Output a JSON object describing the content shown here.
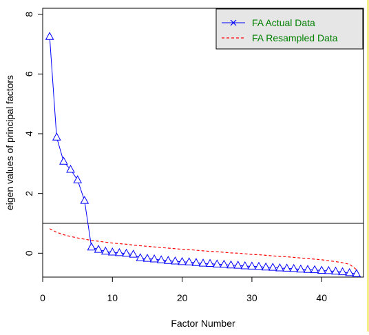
{
  "chart_data": {
    "type": "line",
    "xlabel": "Factor Number",
    "ylabel": "eigen values of principal factors",
    "xlim": [
      0,
      46
    ],
    "ylim": [
      -0.8,
      8.2
    ],
    "x_ticks": [
      0,
      10,
      20,
      30,
      40
    ],
    "y_ticks": [
      0,
      2,
      4,
      6,
      8
    ],
    "grid": false,
    "legend_position": "top-right",
    "reference_line": {
      "y": 1,
      "color": "#000000"
    },
    "series": [
      {
        "name": "FA  Actual Data",
        "style": "line-with-triangles",
        "color": "#0000ff",
        "x": [
          1,
          2,
          3,
          4,
          5,
          6,
          7,
          8,
          9,
          10,
          11,
          12,
          13,
          14,
          15,
          16,
          17,
          18,
          19,
          20,
          21,
          22,
          23,
          24,
          25,
          26,
          27,
          28,
          29,
          30,
          31,
          32,
          33,
          34,
          35,
          36,
          37,
          38,
          39,
          40,
          41,
          42,
          43,
          44,
          45
        ],
        "values": [
          7.25,
          3.88,
          3.07,
          2.8,
          2.45,
          1.76,
          0.2,
          0.12,
          0.06,
          0.03,
          0.01,
          -0.01,
          -0.04,
          -0.16,
          -0.18,
          -0.2,
          -0.23,
          -0.25,
          -0.27,
          -0.29,
          -0.3,
          -0.32,
          -0.34,
          -0.35,
          -0.37,
          -0.38,
          -0.4,
          -0.41,
          -0.43,
          -0.44,
          -0.45,
          -0.47,
          -0.48,
          -0.5,
          -0.51,
          -0.52,
          -0.54,
          -0.55,
          -0.56,
          -0.58,
          -0.59,
          -0.61,
          -0.63,
          -0.66,
          -0.69
        ]
      },
      {
        "name": "FA  Resampled Data",
        "style": "dashed",
        "color": "#ff0000",
        "x": [
          1,
          2,
          3,
          4,
          5,
          6,
          7,
          8,
          9,
          10,
          11,
          12,
          13,
          14,
          15,
          16,
          17,
          18,
          19,
          20,
          21,
          22,
          23,
          24,
          25,
          26,
          27,
          28,
          29,
          30,
          31,
          32,
          33,
          34,
          35,
          36,
          37,
          38,
          39,
          40,
          41,
          42,
          43,
          44,
          45
        ],
        "values": [
          0.82,
          0.7,
          0.62,
          0.56,
          0.51,
          0.47,
          0.43,
          0.4,
          0.37,
          0.34,
          0.32,
          0.3,
          0.27,
          0.25,
          0.23,
          0.21,
          0.19,
          0.17,
          0.15,
          0.13,
          0.12,
          0.1,
          0.08,
          0.06,
          0.05,
          0.03,
          0.01,
          0.0,
          -0.02,
          -0.04,
          -0.05,
          -0.07,
          -0.09,
          -0.11,
          -0.12,
          -0.14,
          -0.16,
          -0.18,
          -0.2,
          -0.22,
          -0.25,
          -0.28,
          -0.32,
          -0.37,
          -0.55
        ]
      }
    ]
  }
}
